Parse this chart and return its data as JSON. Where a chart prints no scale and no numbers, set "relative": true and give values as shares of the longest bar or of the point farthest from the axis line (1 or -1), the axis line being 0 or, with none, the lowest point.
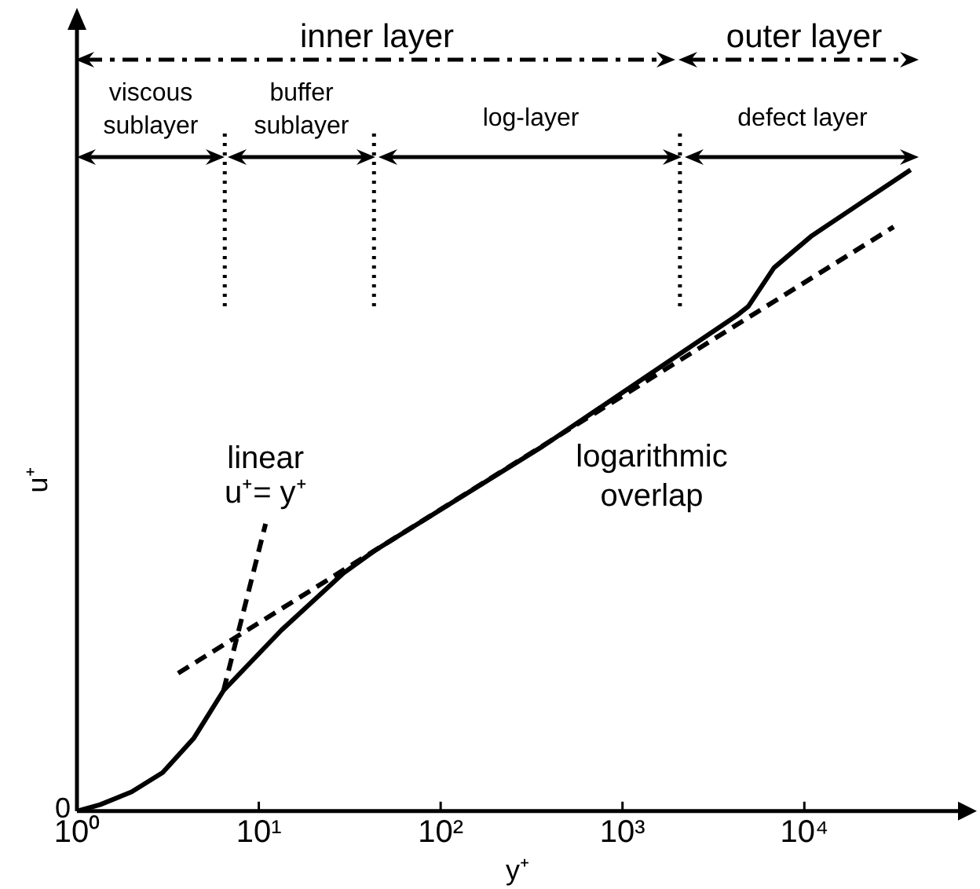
{
  "chart_data": {
    "type": "line",
    "relative": true,
    "xlabel": "y⁺",
    "ylabel": "u⁺",
    "log": "x",
    "xlim": [
      1,
      70000
    ],
    "xticks": [
      {
        "value": 1,
        "label": "10⁰"
      },
      {
        "value": 10,
        "label": "10¹"
      },
      {
        "value": 100,
        "label": "10²"
      },
      {
        "value": 1000,
        "label": "10³"
      },
      {
        "value": 10000,
        "label": "10⁴"
      }
    ],
    "series": [
      {
        "color": "#000000",
        "line_style": "solid",
        "x": [
          1,
          1.34,
          2,
          2.96,
          4.4,
          6.4,
          13.3,
          29.2,
          43.3,
          365,
          4220,
          4920,
          6800,
          10870,
          20400,
          38400
        ],
        "values": [
          0,
          0.01,
          0.03,
          0.06,
          0.114,
          0.188,
          0.282,
          0.371,
          0.406,
          0.569,
          0.772,
          0.787,
          0.847,
          0.896,
          0.948,
          1
        ]
      },
      {
        "color": "#000000",
        "line_style": "dashed",
        "x": [
          3.6,
          31000
        ],
        "values": [
          0.215,
          0.911
        ]
      },
      {
        "color": "#000000",
        "line_style": "dashed",
        "x": [
          6.4,
          10.9
        ],
        "values": [
          0.188,
          0.448
        ]
      }
    ],
    "ref_lines": [
      {
        "axis": "x",
        "value": 6.5,
        "line_style": "dotted"
      },
      {
        "axis": "x",
        "value": 43,
        "line_style": "dotted"
      },
      {
        "axis": "x",
        "value": 2070,
        "line_style": "dotted"
      }
    ],
    "annotations": [
      "inner layer",
      "outer layer",
      "viscous sublayer",
      "buffer sublayer",
      "log-layer",
      "defect layer",
      "0",
      {
        "text": "linear\nu⁺= y⁺",
        "x": 10.9,
        "y": 0.46
      },
      "logarithmic\noverlap"
    ]
  }
}
